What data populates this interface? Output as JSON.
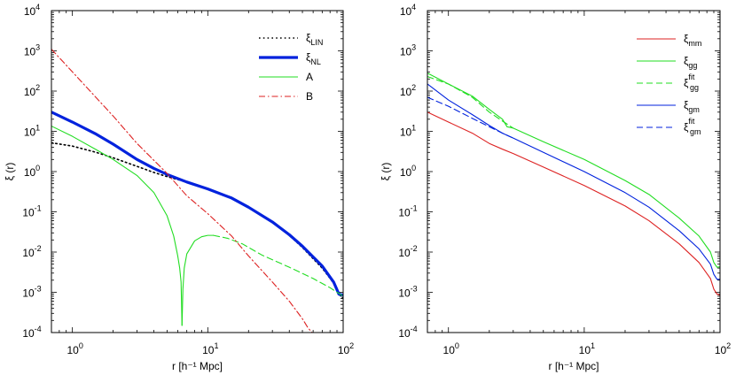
{
  "chart_data": [
    {
      "type": "line",
      "panel": "left",
      "xscale": "log",
      "yscale": "log",
      "xlim": [
        0.7,
        100
      ],
      "ylim": [
        0.0001,
        10000
      ],
      "xlabel": "r [h⁻¹ Mpc]",
      "ylabel": "ξ (r)",
      "xticks": [
        {
          "base": "10",
          "exp": "0"
        },
        {
          "base": "10",
          "exp": "1"
        },
        {
          "base": "10",
          "exp": "2"
        }
      ],
      "yticks": [
        {
          "base": "10",
          "exp": "-4"
        },
        {
          "base": "10",
          "exp": "-3"
        },
        {
          "base": "10",
          "exp": "-2"
        },
        {
          "base": "10",
          "exp": "-1"
        },
        {
          "base": "10",
          "exp": "0"
        },
        {
          "base": "10",
          "exp": "1"
        },
        {
          "base": "10",
          "exp": "2"
        },
        {
          "base": "10",
          "exp": "3"
        },
        {
          "base": "10",
          "exp": "4"
        }
      ],
      "legend_position": "top-right",
      "series": [
        {
          "name": "ξ",
          "sub": "LIN",
          "sup": "",
          "color": "#000000",
          "style": "dotted",
          "width": 1.6,
          "points": [
            [
              0.7,
              5.2
            ],
            [
              1.0,
              4.3
            ],
            [
              1.5,
              3.0
            ],
            [
              2.0,
              2.2
            ],
            [
              3.0,
              1.35
            ],
            [
              4.0,
              0.95
            ],
            [
              5.0,
              0.75
            ],
            [
              7.0,
              0.55
            ],
            [
              10.0,
              0.36
            ],
            [
              15.0,
              0.22
            ],
            [
              20.0,
              0.13
            ],
            [
              30.0,
              0.055
            ],
            [
              40.0,
              0.026
            ],
            [
              50.0,
              0.013
            ],
            [
              70.0,
              0.004
            ],
            [
              85.0,
              0.0017
            ],
            [
              93.0,
              0.0009
            ],
            [
              100.0,
              0.0007
            ]
          ]
        },
        {
          "name": "ξ",
          "sub": "NL",
          "sup": "",
          "color": "#0022dd",
          "style": "solid",
          "width": 3.2,
          "points": [
            [
              0.7,
              30
            ],
            [
              1.0,
              17
            ],
            [
              1.5,
              8.5
            ],
            [
              2.0,
              4.8
            ],
            [
              3.0,
              2.0
            ],
            [
              4.0,
              1.2
            ],
            [
              5.0,
              0.85
            ],
            [
              7.0,
              0.55
            ],
            [
              10.0,
              0.37
            ],
            [
              15.0,
              0.22
            ],
            [
              20.0,
              0.13
            ],
            [
              30.0,
              0.056
            ],
            [
              40.0,
              0.027
            ],
            [
              50.0,
              0.014
            ],
            [
              70.0,
              0.0045
            ],
            [
              85.0,
              0.0018
            ],
            [
              93.0,
              0.0009
            ],
            [
              100.0,
              0.00085
            ]
          ]
        },
        {
          "name": "A",
          "sub": "",
          "sup": "",
          "color": "#22dd22",
          "style": "solid",
          "width": 1.1,
          "points": [
            [
              0.7,
              13.5
            ],
            [
              1.0,
              7.5
            ],
            [
              1.5,
              3.5
            ],
            [
              2.0,
              2.0
            ],
            [
              3.0,
              0.8
            ],
            [
              4.0,
              0.3
            ],
            [
              5.0,
              0.08
            ],
            [
              5.6,
              0.025
            ],
            [
              6.0,
              0.008
            ],
            [
              6.2,
              0.004
            ],
            [
              6.35,
              0.0018
            ],
            [
              6.45,
              0.00015
            ]
          ]
        },
        {
          "name": "A",
          "sub": "",
          "sup": "",
          "color": "#22dd22",
          "style": "solid",
          "width": 1.1,
          "points": [
            [
              6.45,
              0.00015
            ],
            [
              6.55,
              0.0012
            ],
            [
              6.7,
              0.004
            ],
            [
              7.0,
              0.009
            ],
            [
              8.0,
              0.019
            ],
            [
              9.0,
              0.024
            ],
            [
              10.0,
              0.026
            ],
            [
              11.0,
              0.026
            ]
          ]
        },
        {
          "name": "A",
          "sub": "",
          "sup": "",
          "color": "#22dd22",
          "style": "dashed",
          "width": 1.1,
          "points": [
            [
              11.0,
              0.026
            ],
            [
              14.0,
              0.022
            ],
            [
              18.0,
              0.016
            ],
            [
              25.0,
              0.0085
            ],
            [
              40.0,
              0.0042
            ],
            [
              60.0,
              0.0022
            ],
            [
              80.0,
              0.0013
            ],
            [
              100.0,
              0.0008
            ]
          ]
        },
        {
          "name": "B",
          "sub": "",
          "sup": "",
          "color": "#dd2222",
          "style": "dashdot",
          "width": 1.1,
          "points": [
            [
              0.7,
              1100
            ],
            [
              1.0,
              300
            ],
            [
              2.0,
              24
            ],
            [
              3.0,
              5
            ],
            [
              5.0,
              0.9
            ],
            [
              7.0,
              0.25
            ],
            [
              10.0,
              0.09
            ],
            [
              15.0,
              0.025
            ],
            [
              20.0,
              0.008
            ],
            [
              30.0,
              0.0018
            ],
            [
              40.0,
              0.0006
            ],
            [
              50.0,
              0.00022
            ],
            [
              55.0,
              0.00013
            ],
            [
              59.0,
              0.0001
            ]
          ]
        }
      ],
      "legend": [
        {
          "label": "ξ",
          "sub": "LIN",
          "sup": "",
          "color": "#000000",
          "style": "dotted",
          "width": 1.6
        },
        {
          "label": "ξ",
          "sub": "NL",
          "sup": "",
          "color": "#0022dd",
          "style": "solid",
          "width": 3.2
        },
        {
          "label": "A",
          "sub": "",
          "sup": "",
          "color": "#22dd22",
          "style": "solid",
          "width": 1.1
        },
        {
          "label": "B",
          "sub": "",
          "sup": "",
          "color": "#dd2222",
          "style": "dashdot",
          "width": 1.1
        }
      ]
    },
    {
      "type": "line",
      "panel": "right",
      "xscale": "log",
      "yscale": "log",
      "xlim": [
        0.7,
        100
      ],
      "ylim": [
        0.0001,
        10000
      ],
      "xlabel": "r [h⁻¹ Mpc]",
      "ylabel": "ξ (r)",
      "xticks": [
        {
          "base": "10",
          "exp": "0"
        },
        {
          "base": "10",
          "exp": "1"
        },
        {
          "base": "10",
          "exp": "2"
        }
      ],
      "yticks": [
        {
          "base": "10",
          "exp": "-4"
        },
        {
          "base": "10",
          "exp": "-3"
        },
        {
          "base": "10",
          "exp": "-2"
        },
        {
          "base": "10",
          "exp": "-1"
        },
        {
          "base": "10",
          "exp": "0"
        },
        {
          "base": "10",
          "exp": "1"
        },
        {
          "base": "10",
          "exp": "2"
        },
        {
          "base": "10",
          "exp": "3"
        },
        {
          "base": "10",
          "exp": "4"
        }
      ],
      "legend_position": "top-right",
      "series": [
        {
          "name": "ξ",
          "sub": "mm",
          "sup": "",
          "color": "#dd2222",
          "style": "solid",
          "width": 1.1,
          "points": [
            [
              0.7,
              30
            ],
            [
              1.0,
              17
            ],
            [
              1.5,
              9
            ],
            [
              2.0,
              5
            ],
            [
              2.5,
              3.6
            ],
            [
              3.0,
              2.8
            ],
            [
              5.0,
              1.3
            ],
            [
              10.0,
              0.45
            ],
            [
              20.0,
              0.14
            ],
            [
              30.0,
              0.06
            ],
            [
              50.0,
              0.016
            ],
            [
              70.0,
              0.0055
            ],
            [
              85.0,
              0.0022
            ],
            [
              90.0,
              0.0012
            ],
            [
              95.0,
              0.0009
            ],
            [
              100.0,
              0.00085
            ]
          ]
        },
        {
          "name": "ξ",
          "sub": "gg",
          "sup": "",
          "color": "#22dd22",
          "style": "solid",
          "width": 1.1,
          "points": [
            [
              0.7,
              280
            ],
            [
              1.0,
              150
            ],
            [
              1.5,
              75
            ],
            [
              2.0,
              35
            ],
            [
              2.5,
              20
            ],
            [
              2.7,
              13
            ],
            [
              3.0,
              12
            ],
            [
              5.0,
              5.5
            ],
            [
              10.0,
              2.0
            ],
            [
              20.0,
              0.6
            ],
            [
              30.0,
              0.27
            ],
            [
              50.0,
              0.07
            ],
            [
              70.0,
              0.025
            ],
            [
              85.0,
              0.01
            ],
            [
              90.0,
              0.0055
            ],
            [
              95.0,
              0.0042
            ],
            [
              100.0,
              0.0043
            ]
          ]
        },
        {
          "name": "ξ",
          "sub": "gg",
          "sup": "fit",
          "color": "#22dd22",
          "style": "dashed",
          "width": 1.1,
          "points": [
            [
              0.7,
              230
            ],
            [
              1.0,
              150
            ],
            [
              1.5,
              70
            ],
            [
              2.0,
              30
            ],
            [
              2.5,
              18
            ],
            [
              3.0,
              12
            ]
          ]
        },
        {
          "name": "ξ",
          "sub": "gm",
          "sup": "",
          "color": "#0022dd",
          "style": "solid",
          "width": 1.1,
          "points": [
            [
              0.7,
              150
            ],
            [
              1.0,
              60
            ],
            [
              1.5,
              26
            ],
            [
              2.0,
              14
            ],
            [
              2.5,
              9
            ],
            [
              3.0,
              6.8
            ],
            [
              5.0,
              3.0
            ],
            [
              10.0,
              1.0
            ],
            [
              20.0,
              0.3
            ],
            [
              30.0,
              0.13
            ],
            [
              50.0,
              0.034
            ],
            [
              70.0,
              0.012
            ],
            [
              85.0,
              0.005
            ],
            [
              90.0,
              0.0028
            ],
            [
              95.0,
              0.0021
            ],
            [
              100.0,
              0.0021
            ]
          ]
        },
        {
          "name": "ξ",
          "sub": "gm",
          "sup": "fit",
          "color": "#0022dd",
          "style": "dashed",
          "width": 1.1,
          "points": [
            [
              0.7,
              70
            ],
            [
              1.0,
              42
            ],
            [
              1.5,
              21
            ],
            [
              2.0,
              13
            ],
            [
              2.5,
              9
            ],
            [
              3.0,
              6.8
            ]
          ]
        }
      ],
      "legend": [
        {
          "label": "ξ",
          "sub": "mm",
          "sup": "",
          "color": "#dd2222",
          "style": "solid",
          "width": 1.1
        },
        {
          "label": "ξ",
          "sub": "gg",
          "sup": "",
          "color": "#22dd22",
          "style": "solid",
          "width": 1.1
        },
        {
          "label": "ξ",
          "sub": "gg",
          "sup": "fit",
          "color": "#22dd22",
          "style": "dashed",
          "width": 1.1
        },
        {
          "label": "ξ",
          "sub": "gm",
          "sup": "",
          "color": "#0022dd",
          "style": "solid",
          "width": 1.1
        },
        {
          "label": "ξ",
          "sub": "gm",
          "sup": "fit",
          "color": "#0022dd",
          "style": "dashed",
          "width": 1.1
        }
      ]
    }
  ]
}
